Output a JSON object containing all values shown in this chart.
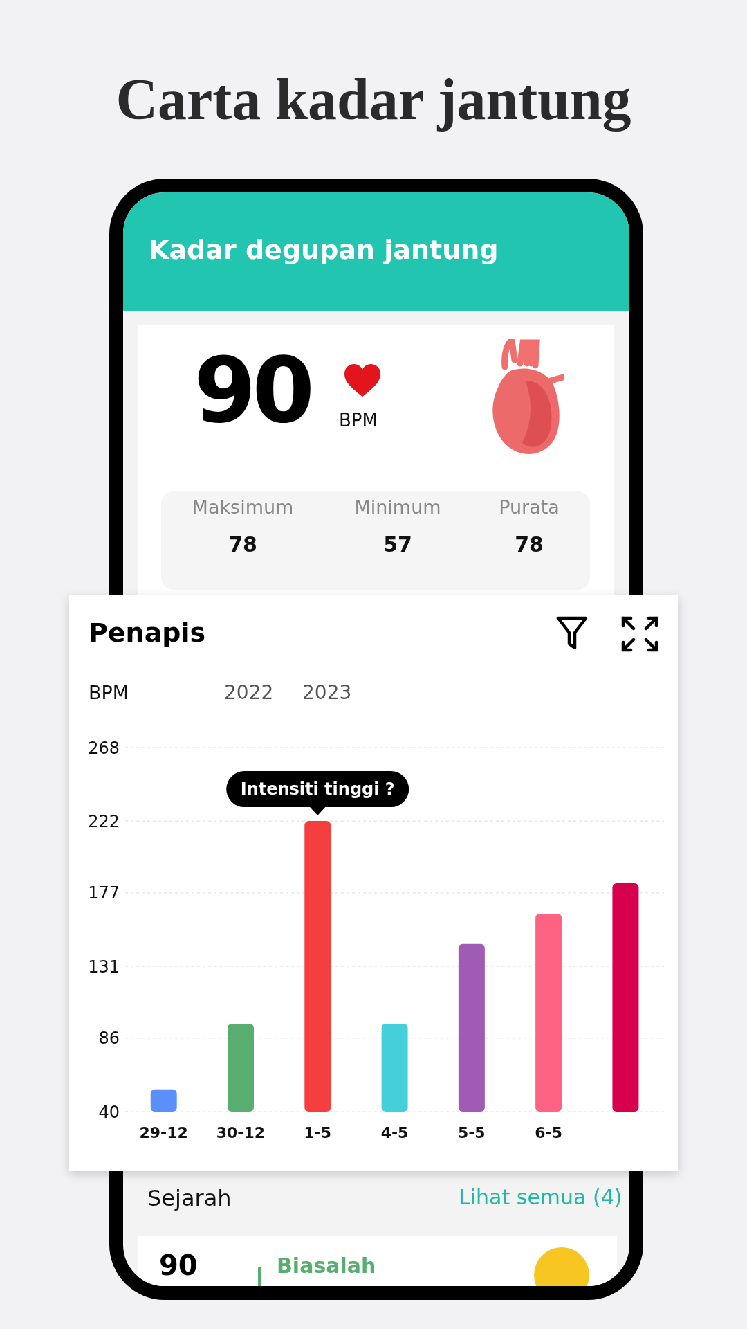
{
  "chart_data": {
    "type": "bar",
    "title": "Carta kadar jantung",
    "ylabel": "BPM",
    "categories": [
      "29-12",
      "30-12",
      "1-5",
      "4-5",
      "5-5",
      "6-5",
      null
    ],
    "values": [
      54,
      95,
      222,
      95,
      145,
      164,
      183
    ],
    "colors": [
      "#5b8ff9",
      "#57ae6e",
      "#f53e3e",
      "#45cfdb",
      "#a05cb5",
      "#ff6384",
      "#d6004c"
    ],
    "ylim": [
      40,
      268
    ],
    "yticks": [
      40,
      86,
      131,
      177,
      222,
      268
    ],
    "grid": "y",
    "annotations": [
      "Kadar degupan jantung",
      "90",
      "BPM",
      "Maksimum",
      "78",
      "Minimum",
      "57",
      "Purata",
      "78",
      "Penapis",
      "2022",
      "2023",
      {
        "text": "Intensiti tinggi ?",
        "x": "1-5",
        "y": 222
      },
      "Sejarah",
      "Lihat semua (4)",
      "90",
      "Biasalah"
    ]
  }
}
